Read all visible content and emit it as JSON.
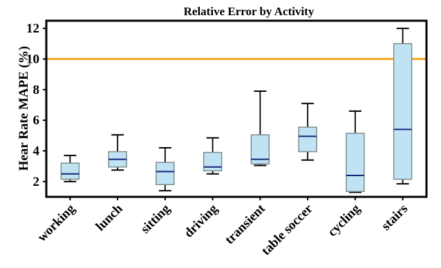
{
  "chart_data": {
    "type": "box",
    "title": "Relative Error by Activity",
    "ylabel": "Hear Rate MAPE (%)",
    "xlabel": "",
    "ylim": [
      1.0,
      12.5
    ],
    "yticks": [
      2,
      4,
      6,
      8,
      10,
      12
    ],
    "reference_line": {
      "y": 10,
      "color": "#f5a623"
    },
    "box_fill": "#bfe3f3",
    "box_edge": "#7f8c8d",
    "median_color": "#1a237e",
    "grid": false,
    "categories": [
      "working",
      "lunch",
      "sitting",
      "driving",
      "transient",
      "table soccer",
      "cycling",
      "stairs"
    ],
    "boxes": [
      {
        "min": 2.0,
        "q1": 2.15,
        "median": 2.5,
        "q3": 3.2,
        "max": 3.7
      },
      {
        "min": 2.75,
        "q1": 2.95,
        "median": 3.45,
        "q3": 3.95,
        "max": 5.05
      },
      {
        "min": 1.4,
        "q1": 1.8,
        "median": 2.65,
        "q3": 3.25,
        "max": 4.2
      },
      {
        "min": 2.5,
        "q1": 2.7,
        "median": 2.95,
        "q3": 3.9,
        "max": 4.85
      },
      {
        "min": 3.05,
        "q1": 3.15,
        "median": 3.45,
        "q3": 5.05,
        "max": 7.9
      },
      {
        "min": 3.4,
        "q1": 3.95,
        "median": 4.95,
        "q3": 5.55,
        "max": 7.1
      },
      {
        "min": 1.3,
        "q1": 1.35,
        "median": 2.4,
        "q3": 5.15,
        "max": 6.6
      },
      {
        "min": 1.85,
        "q1": 2.15,
        "median": 5.4,
        "q3": 11.0,
        "max": 12.0
      }
    ]
  }
}
